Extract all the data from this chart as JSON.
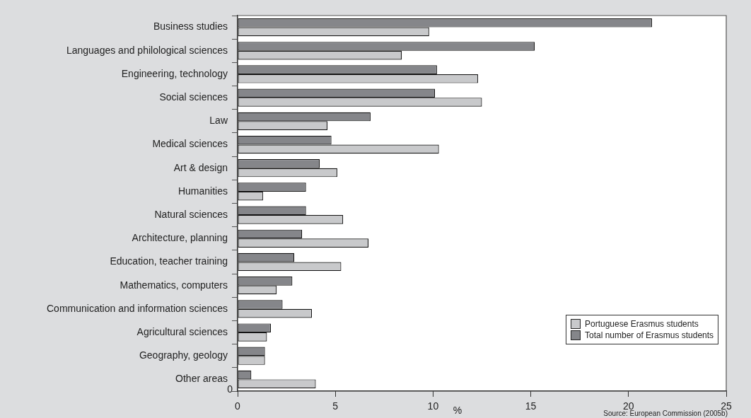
{
  "chart_data": {
    "type": "bar",
    "orientation": "horizontal",
    "xlabel": "%",
    "categories": [
      "Business studies",
      "Languages and philological sciences",
      "Engineering, technology",
      "Social sciences",
      "Law",
      "Medical sciences",
      "Art & design",
      "Humanities",
      "Natural sciences",
      "Architecture, planning",
      "Education, teacher training",
      "Mathematics, computers",
      "Communication and information sciences",
      "Agricultural sciences",
      "Geography, geology",
      "Other areas"
    ],
    "series": [
      {
        "name": "Portuguese Erasmus students",
        "color": "#c8c9cb",
        "values": [
          9.8,
          8.4,
          12.3,
          12.5,
          4.6,
          10.3,
          5.1,
          1.3,
          5.4,
          6.7,
          5.3,
          2.0,
          3.8,
          1.5,
          1.4,
          4.0
        ]
      },
      {
        "name": "Total number of Erasmus students",
        "color": "#85868a",
        "values": [
          21.2,
          15.2,
          10.2,
          10.1,
          6.8,
          4.8,
          4.2,
          3.5,
          3.5,
          3.3,
          2.9,
          2.8,
          2.3,
          1.7,
          1.4,
          0.7
        ]
      }
    ],
    "xlim": [
      0,
      25
    ],
    "xticks": [
      0,
      5,
      10,
      15,
      20,
      25
    ],
    "grid": false,
    "legend": "bottom right",
    "annotations": [
      "0",
      "Source: European Commission (2005b)"
    ]
  }
}
